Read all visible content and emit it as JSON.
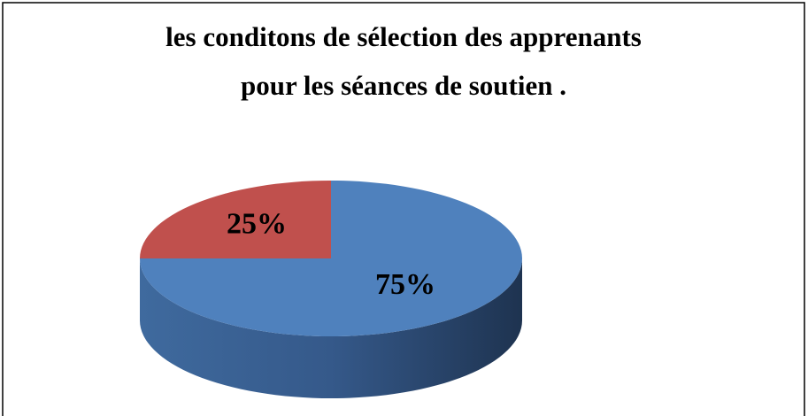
{
  "chart_data": {
    "type": "pie",
    "title": [
      "les conditons de sélection des apprenants",
      "pour les séances de soutien ."
    ],
    "values": [
      75,
      25
    ],
    "value_labels": [
      "75%",
      "25%"
    ],
    "colors": [
      "#4f81bd",
      "#c0504d"
    ]
  }
}
